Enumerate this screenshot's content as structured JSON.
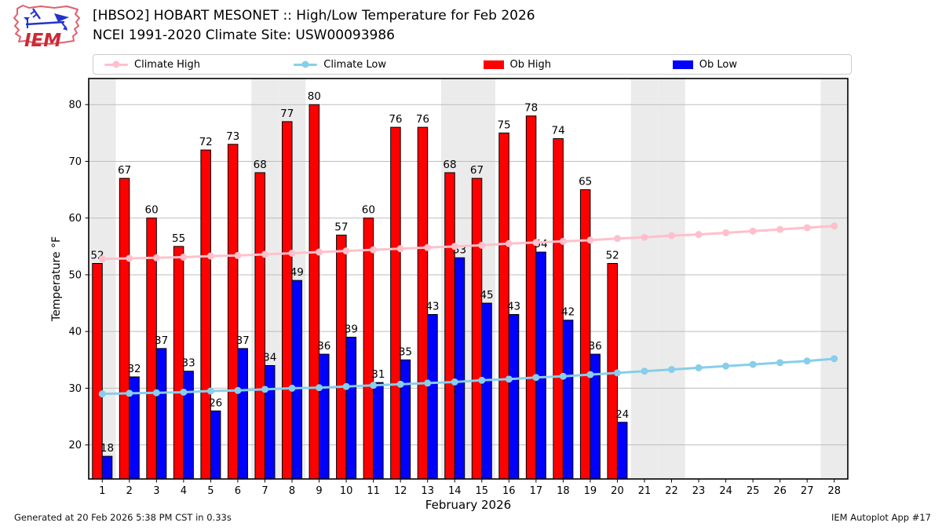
{
  "header": {
    "title": "[HBSO2] HOBART MESONET :: High/Low Temperature for Feb 2026",
    "subtitle": "NCEI 1991-2020 Climate Site: USW00093986",
    "logo_text": "IEM"
  },
  "legend": {
    "position": "top",
    "items": [
      {
        "label": "Climate High",
        "type": "line",
        "color": "#ffc0cb"
      },
      {
        "label": "Climate Low",
        "type": "line",
        "color": "#87ceeb"
      },
      {
        "label": "Ob High",
        "type": "patch",
        "color": "#ff0000"
      },
      {
        "label": "Ob Low",
        "type": "patch",
        "color": "#0000ff"
      }
    ]
  },
  "chart_data": {
    "type": "bar",
    "subtype": "grouped-bars-with-climate-lines",
    "title": "[HBSO2] HOBART MESONET :: High/Low Temperature for Feb 2026",
    "xlabel": "February 2026",
    "ylabel": "Temperature °F",
    "x": [
      1,
      2,
      3,
      4,
      5,
      6,
      7,
      8,
      9,
      10,
      11,
      12,
      13,
      14,
      15,
      16,
      17,
      18,
      19,
      20,
      21,
      22,
      23,
      24,
      25,
      26,
      27,
      28
    ],
    "xlim": [
      0,
      28
    ],
    "ylim": [
      14,
      84.6
    ],
    "yticks": [
      20,
      30,
      40,
      50,
      60,
      70,
      80
    ],
    "grid": true,
    "weekend_shading_days": [
      1,
      7,
      8,
      14,
      15,
      21,
      22,
      28
    ],
    "weekend_shading_color": "#ebebeb",
    "gridline_color": "#bdbdbd",
    "series": [
      {
        "name": "Ob High",
        "type": "bar",
        "color": "#ff0000",
        "edge_color": "#000000",
        "values": [
          52,
          67,
          60,
          55,
          72,
          73,
          68,
          77,
          80,
          57,
          60,
          76,
          76,
          68,
          67,
          75,
          78,
          74,
          65,
          52,
          null,
          null,
          null,
          null,
          null,
          null,
          null,
          null
        ]
      },
      {
        "name": "Ob Low",
        "type": "bar",
        "color": "#0000ff",
        "edge_color": "#000000",
        "values": [
          18,
          32,
          37,
          33,
          26,
          37,
          34,
          49,
          36,
          39,
          31,
          35,
          43,
          53,
          45,
          43,
          54,
          42,
          36,
          24,
          null,
          null,
          null,
          null,
          null,
          null,
          null,
          null
        ]
      },
      {
        "name": "Climate High",
        "type": "line",
        "color": "#ffc0cb",
        "values": [
          52.8,
          52.9,
          53.0,
          53.1,
          53.3,
          53.4,
          53.6,
          53.8,
          54.0,
          54.2,
          54.4,
          54.6,
          54.8,
          55.0,
          55.2,
          55.5,
          55.7,
          55.9,
          56.1,
          56.4,
          56.6,
          56.9,
          57.1,
          57.4,
          57.7,
          58.0,
          58.3,
          58.6
        ]
      },
      {
        "name": "Climate Low",
        "type": "line",
        "color": "#87ceeb",
        "values": [
          29.0,
          29.1,
          29.2,
          29.3,
          29.5,
          29.6,
          29.8,
          30.0,
          30.1,
          30.3,
          30.5,
          30.7,
          30.9,
          31.1,
          31.4,
          31.6,
          31.9,
          32.1,
          32.4,
          32.7,
          33.0,
          33.3,
          33.6,
          33.9,
          34.2,
          34.5,
          34.8,
          35.2
        ]
      }
    ]
  },
  "footer": {
    "left": "Generated at 20 Feb 2026 5:38 PM CST in 0.33s",
    "right": "IEM Autoplot App #17"
  }
}
